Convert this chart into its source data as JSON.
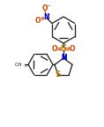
{
  "bg_color": "#ffffff",
  "bond_color": "#1a1a1a",
  "atom_colors": {
    "N": "#0000cc",
    "O": "#cc4400",
    "S": "#aa7700",
    "C": "#1a1a1a"
  },
  "figsize": [
    1.18,
    1.44
  ],
  "dpi": 100
}
